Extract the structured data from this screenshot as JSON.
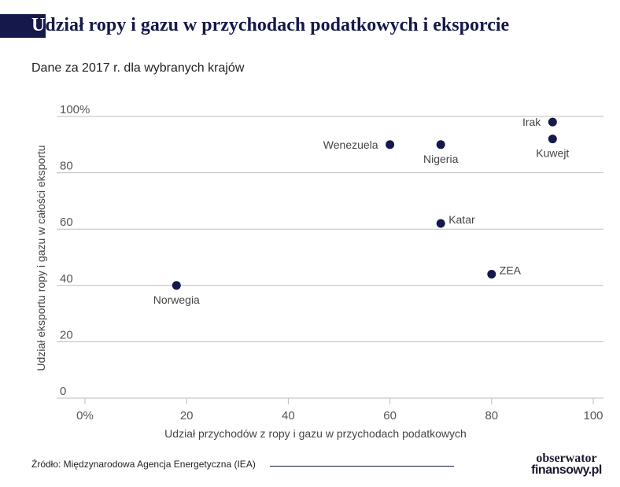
{
  "title_first": "U",
  "title_rest": "dział ropy i gazu w przychodach podatkowych i eksporcie",
  "subtitle": "Dane za 2017 r. dla wybranych krajów",
  "source": "Źródło: Międzynarodowa Agencja Energetyczna (IEA)",
  "logo": {
    "line1": "obserwator",
    "line2": "finansowy.pl"
  },
  "colors": {
    "accent": "#15184a",
    "grid": "#bdbdbd",
    "tick_text": "#555555",
    "label_text": "#444444"
  },
  "chart_data": {
    "type": "scatter",
    "xlabel": "Udział przychodów z ropy i gazu w przychodach podatkowych",
    "ylabel": "Udział eksportu ropy i gazu w całości eksportu",
    "xlim": [
      0,
      100
    ],
    "ylim": [
      0,
      100
    ],
    "x_ticks": [
      0,
      20,
      40,
      60,
      80,
      100
    ],
    "x_tick_labels": [
      "0%",
      "20",
      "40",
      "60",
      "80",
      "100"
    ],
    "y_ticks": [
      0,
      20,
      40,
      60,
      80,
      100
    ],
    "y_tick_labels": [
      "0",
      "20",
      "40",
      "60",
      "80",
      "100%"
    ],
    "grid": "horizontal",
    "points": [
      {
        "label": "Norwegia",
        "x": 18,
        "y": 40,
        "label_pos": "below"
      },
      {
        "label": "Wenezuela",
        "x": 60,
        "y": 90,
        "label_pos": "left"
      },
      {
        "label": "Nigeria",
        "x": 70,
        "y": 90,
        "label_pos": "below"
      },
      {
        "label": "Katar",
        "x": 70,
        "y": 62,
        "label_pos": "right"
      },
      {
        "label": "ZEA",
        "x": 80,
        "y": 44,
        "label_pos": "right"
      },
      {
        "label": "Irak",
        "x": 92,
        "y": 98,
        "label_pos": "left"
      },
      {
        "label": "Kuwejt",
        "x": 92,
        "y": 92,
        "label_pos": "below"
      }
    ]
  }
}
